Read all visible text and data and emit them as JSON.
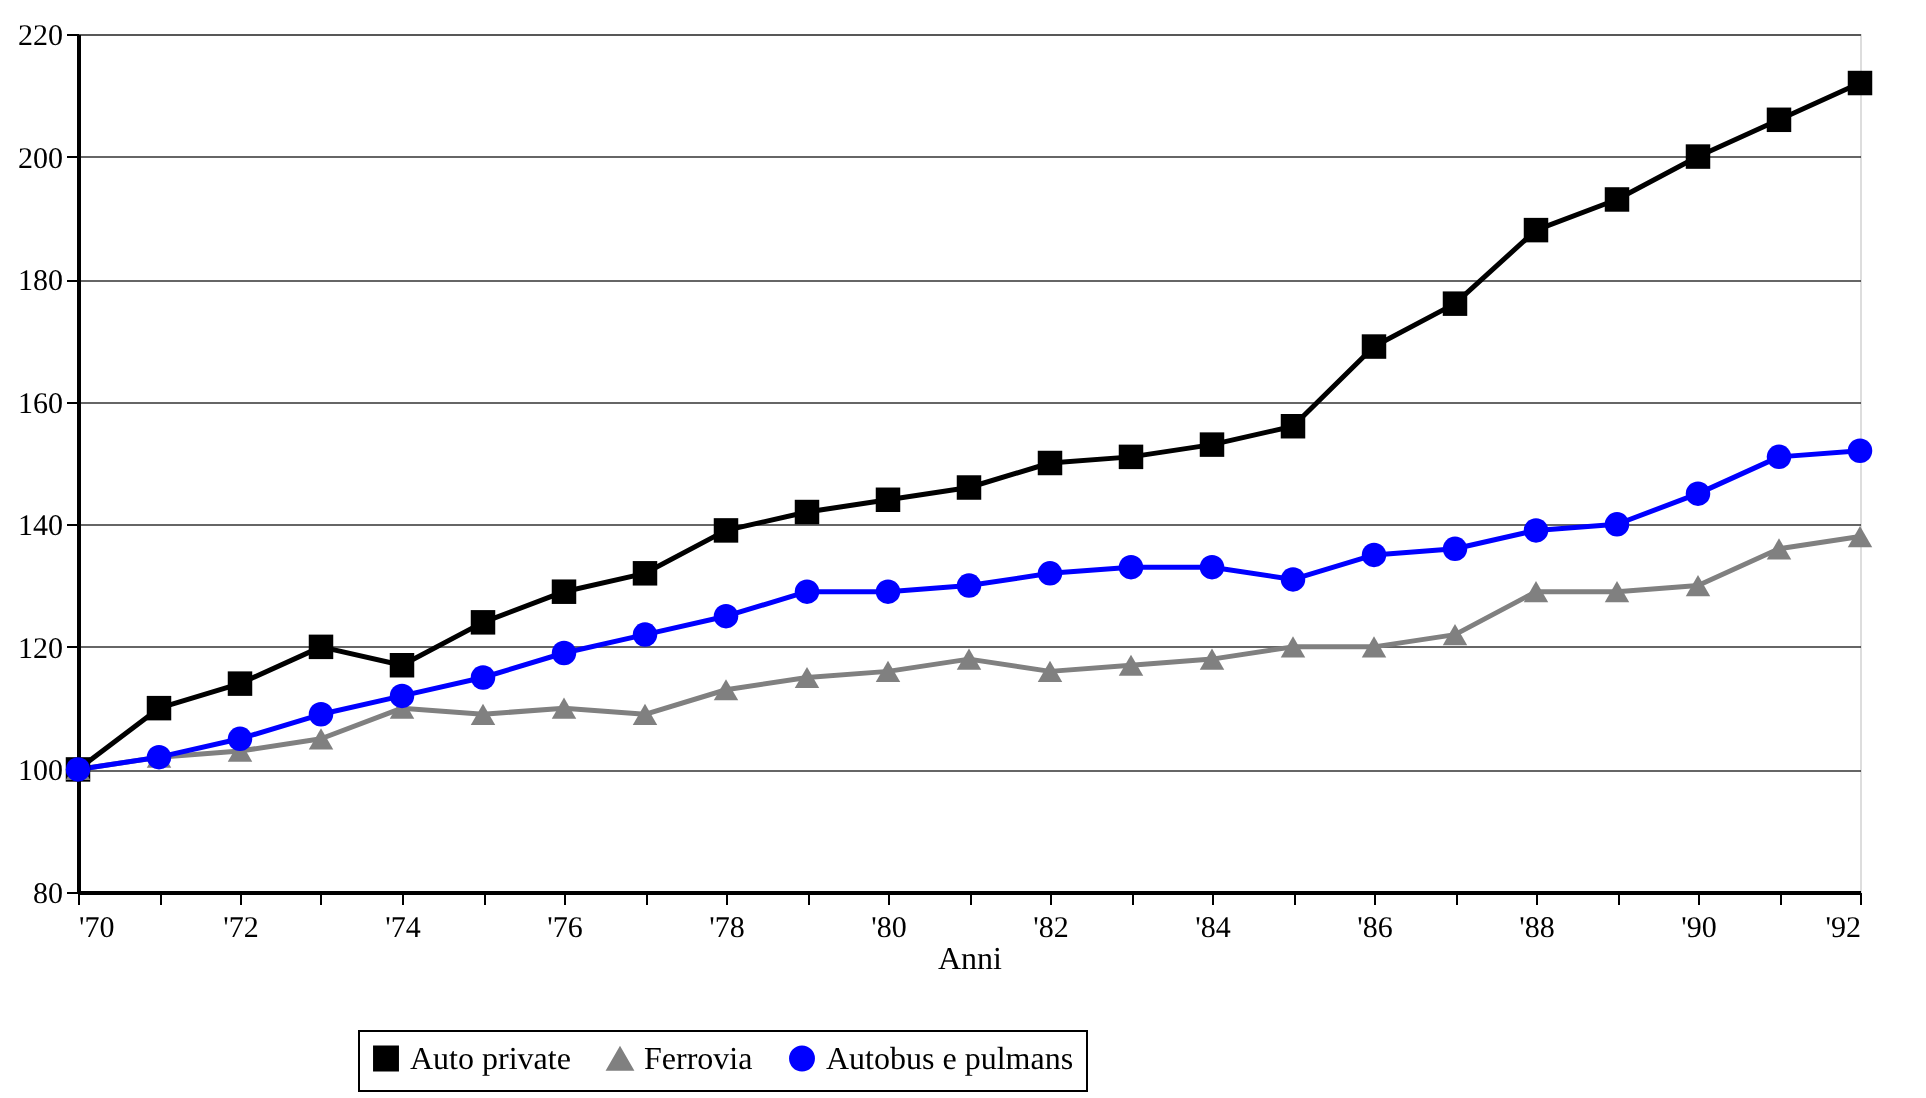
{
  "chart_data": {
    "type": "line",
    "xlabel": "Anni",
    "x": [
      1970,
      1971,
      1972,
      1973,
      1974,
      1975,
      1976,
      1977,
      1978,
      1979,
      1980,
      1981,
      1982,
      1983,
      1984,
      1985,
      1986,
      1987,
      1988,
      1989,
      1990,
      1991,
      1992
    ],
    "series": [
      {
        "name": "Auto private",
        "color": "#000000",
        "marker": "square",
        "values": [
          100,
          110,
          114,
          120,
          117,
          124,
          129,
          132,
          139,
          142,
          144,
          146,
          150,
          151,
          153,
          156,
          169,
          176,
          188,
          193,
          200,
          206,
          212
        ]
      },
      {
        "name": "Ferrovia",
        "color": "#808080",
        "marker": "triangle",
        "values": [
          100,
          102,
          103,
          105,
          110,
          109,
          110,
          109,
          113,
          115,
          116,
          118,
          116,
          117,
          118,
          120,
          120,
          122,
          129,
          129,
          130,
          136,
          138
        ]
      },
      {
        "name": "Autobus e pulmans",
        "color": "#0000ff",
        "marker": "circle",
        "values": [
          100,
          102,
          105,
          109,
          112,
          115,
          119,
          122,
          125,
          129,
          129,
          130,
          132,
          133,
          133,
          131,
          135,
          136,
          139,
          140,
          145,
          151,
          152
        ]
      }
    ],
    "xlim": [
      1970,
      1992
    ],
    "xticks": [
      {
        "value": 1970,
        "label": "'70"
      },
      {
        "value": 1971,
        "label": null
      },
      {
        "value": 1972,
        "label": "'72"
      },
      {
        "value": 1973,
        "label": null
      },
      {
        "value": 1974,
        "label": "'74"
      },
      {
        "value": 1975,
        "label": null
      },
      {
        "value": 1976,
        "label": "'76"
      },
      {
        "value": 1977,
        "label": null
      },
      {
        "value": 1978,
        "label": "'78"
      },
      {
        "value": 1979,
        "label": null
      },
      {
        "value": 1980,
        "label": "'80"
      },
      {
        "value": 1981,
        "label": null
      },
      {
        "value": 1982,
        "label": "'82"
      },
      {
        "value": 1983,
        "label": null
      },
      {
        "value": 1984,
        "label": "'84"
      },
      {
        "value": 1985,
        "label": null
      },
      {
        "value": 1986,
        "label": "'86"
      },
      {
        "value": 1987,
        "label": null
      },
      {
        "value": 1988,
        "label": "'88"
      },
      {
        "value": 1989,
        "label": null
      },
      {
        "value": 1990,
        "label": "'90"
      },
      {
        "value": 1991,
        "label": null
      },
      {
        "value": 1992,
        "label": "'92"
      }
    ],
    "ylim": [
      80,
      220
    ],
    "yticks": [
      80,
      100,
      120,
      140,
      160,
      180,
      200,
      220
    ],
    "grid": "y",
    "legend": "bottom",
    "line_style": "solid"
  }
}
